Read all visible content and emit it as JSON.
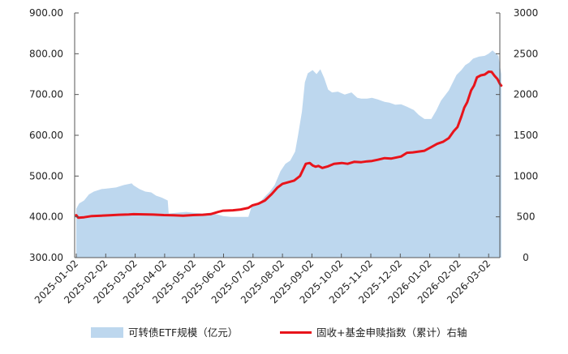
{
  "chart_data": {
    "type": "area",
    "title": "",
    "x_tick_labels": [
      "2025-01-02",
      "2025-02-02",
      "2025-03-02",
      "2025-04-02",
      "2025-05-02",
      "2025-06-02",
      "2025-07-02",
      "2025-08-02",
      "2025-09-02",
      "2025-10-02",
      "2025-11-02",
      "2025-12-02",
      "2026-01-02",
      "2026-02-02",
      "2026-03-02"
    ],
    "y_left": {
      "ticks": [
        "300.00",
        "400.00",
        "500.00",
        "600.00",
        "700.00",
        "800.00",
        "900.00"
      ],
      "range": [
        300,
        900
      ]
    },
    "y_right": {
      "ticks": [
        "0",
        "500",
        "1000",
        "1500",
        "2000",
        "2500",
        "3000"
      ],
      "range": [
        0,
        3000
      ]
    },
    "legend_position": "bottom",
    "grid": false,
    "colors": {
      "area": "#bdd7ee",
      "line": "#e8141b"
    },
    "series": [
      {
        "name": "可转债ETF规模（亿元）",
        "axis": "left",
        "style": "area",
        "points": [
          [
            "2025-01-02",
            420
          ],
          [
            "2025-01-05",
            433
          ],
          [
            "2025-01-10",
            440
          ],
          [
            "2025-01-15",
            455
          ],
          [
            "2025-01-20",
            462
          ],
          [
            "2025-01-28",
            468
          ],
          [
            "2025-02-05",
            470
          ],
          [
            "2025-02-12",
            472
          ],
          [
            "2025-02-20",
            478
          ],
          [
            "2025-02-28",
            482
          ],
          [
            "2025-03-02",
            477
          ],
          [
            "2025-03-08",
            468
          ],
          [
            "2025-03-14",
            462
          ],
          [
            "2025-03-20",
            460
          ],
          [
            "2025-03-25",
            452
          ],
          [
            "2025-03-31",
            447
          ],
          [
            "2025-04-06",
            440
          ],
          [
            "2025-04-07",
            408
          ],
          [
            "2025-04-15",
            410
          ],
          [
            "2025-04-25",
            412
          ],
          [
            "2025-05-02",
            410
          ],
          [
            "2025-05-12",
            408
          ],
          [
            "2025-05-20",
            410
          ],
          [
            "2025-05-28",
            405
          ],
          [
            "2025-06-02",
            402
          ],
          [
            "2025-06-10",
            400
          ],
          [
            "2025-06-20",
            400
          ],
          [
            "2025-06-28",
            400
          ],
          [
            "2025-07-02",
            430
          ],
          [
            "2025-07-10",
            436
          ],
          [
            "2025-07-15",
            450
          ],
          [
            "2025-07-20",
            462
          ],
          [
            "2025-07-25",
            478
          ],
          [
            "2025-07-31",
            512
          ],
          [
            "2025-08-05",
            530
          ],
          [
            "2025-08-10",
            538
          ],
          [
            "2025-08-15",
            560
          ],
          [
            "2025-08-18",
            600
          ],
          [
            "2025-08-22",
            658
          ],
          [
            "2025-08-25",
            730
          ],
          [
            "2025-08-28",
            752
          ],
          [
            "2025-09-02",
            760
          ],
          [
            "2025-09-06",
            750
          ],
          [
            "2025-09-10",
            762
          ],
          [
            "2025-09-14",
            740
          ],
          [
            "2025-09-18",
            712
          ],
          [
            "2025-09-22",
            705
          ],
          [
            "2025-09-28",
            707
          ],
          [
            "2025-10-05",
            700
          ],
          [
            "2025-10-12",
            705
          ],
          [
            "2025-10-18",
            692
          ],
          [
            "2025-10-22",
            690
          ],
          [
            "2025-10-28",
            690
          ],
          [
            "2025-11-02",
            692
          ],
          [
            "2025-11-08",
            688
          ],
          [
            "2025-11-15",
            682
          ],
          [
            "2025-11-20",
            680
          ],
          [
            "2025-11-26",
            675
          ],
          [
            "2025-12-02",
            676
          ],
          [
            "2025-12-08",
            670
          ],
          [
            "2025-12-15",
            662
          ],
          [
            "2025-12-20",
            650
          ],
          [
            "2025-12-26",
            640
          ],
          [
            "2026-01-02",
            640
          ],
          [
            "2026-01-07",
            660
          ],
          [
            "2026-01-12",
            685
          ],
          [
            "2026-01-20",
            710
          ],
          [
            "2026-01-28",
            748
          ],
          [
            "2026-02-02",
            760
          ],
          [
            "2026-02-06",
            772
          ],
          [
            "2026-02-10",
            778
          ],
          [
            "2026-02-14",
            788
          ],
          [
            "2026-02-20",
            793
          ],
          [
            "2026-02-26",
            795
          ],
          [
            "2026-03-02",
            800
          ],
          [
            "2026-03-06",
            808
          ],
          [
            "2026-03-12",
            795
          ],
          [
            "2026-03-15",
            750
          ]
        ]
      },
      {
        "name": "固收+基金申赎指数（累计）右轴",
        "axis": "right",
        "style": "line",
        "points": [
          [
            "2025-01-02",
            520
          ],
          [
            "2025-01-04",
            490
          ],
          [
            "2025-01-10",
            495
          ],
          [
            "2025-01-18",
            510
          ],
          [
            "2025-01-28",
            515
          ],
          [
            "2025-02-05",
            520
          ],
          [
            "2025-02-15",
            525
          ],
          [
            "2025-02-25",
            528
          ],
          [
            "2025-03-02",
            532
          ],
          [
            "2025-03-12",
            530
          ],
          [
            "2025-03-22",
            527
          ],
          [
            "2025-04-02",
            522
          ],
          [
            "2025-04-12",
            520
          ],
          [
            "2025-04-22",
            515
          ],
          [
            "2025-05-02",
            522
          ],
          [
            "2025-05-12",
            525
          ],
          [
            "2025-05-20",
            532
          ],
          [
            "2025-05-28",
            560
          ],
          [
            "2025-06-02",
            575
          ],
          [
            "2025-06-12",
            580
          ],
          [
            "2025-06-20",
            590
          ],
          [
            "2025-06-28",
            610
          ],
          [
            "2025-07-02",
            640
          ],
          [
            "2025-07-08",
            660
          ],
          [
            "2025-07-15",
            700
          ],
          [
            "2025-07-22",
            780
          ],
          [
            "2025-07-28",
            860
          ],
          [
            "2025-08-02",
            905
          ],
          [
            "2025-08-08",
            925
          ],
          [
            "2025-08-14",
            945
          ],
          [
            "2025-08-20",
            1000
          ],
          [
            "2025-08-26",
            1150
          ],
          [
            "2025-08-30",
            1160
          ],
          [
            "2025-09-02",
            1130
          ],
          [
            "2025-09-05",
            1115
          ],
          [
            "2025-09-08",
            1125
          ],
          [
            "2025-09-12",
            1100
          ],
          [
            "2025-09-18",
            1120
          ],
          [
            "2025-09-24",
            1150
          ],
          [
            "2025-10-02",
            1160
          ],
          [
            "2025-10-08",
            1150
          ],
          [
            "2025-10-15",
            1175
          ],
          [
            "2025-10-22",
            1170
          ],
          [
            "2025-10-28",
            1180
          ],
          [
            "2025-11-02",
            1185
          ],
          [
            "2025-11-08",
            1200
          ],
          [
            "2025-11-15",
            1220
          ],
          [
            "2025-11-22",
            1215
          ],
          [
            "2025-11-28",
            1230
          ],
          [
            "2025-12-02",
            1240
          ],
          [
            "2025-12-08",
            1285
          ],
          [
            "2025-12-14",
            1290
          ],
          [
            "2025-12-20",
            1300
          ],
          [
            "2025-12-26",
            1310
          ],
          [
            "2026-01-02",
            1355
          ],
          [
            "2026-01-08",
            1395
          ],
          [
            "2026-01-14",
            1420
          ],
          [
            "2026-01-20",
            1465
          ],
          [
            "2026-01-25",
            1550
          ],
          [
            "2026-01-29",
            1600
          ],
          [
            "2026-02-02",
            1730
          ],
          [
            "2026-02-05",
            1840
          ],
          [
            "2026-02-08",
            1905
          ],
          [
            "2026-02-12",
            2050
          ],
          [
            "2026-02-15",
            2110
          ],
          [
            "2026-02-18",
            2210
          ],
          [
            "2026-02-22",
            2235
          ],
          [
            "2026-02-26",
            2245
          ],
          [
            "2026-03-02",
            2280
          ],
          [
            "2026-03-05",
            2278
          ],
          [
            "2026-03-08",
            2230
          ],
          [
            "2026-03-11",
            2190
          ],
          [
            "2026-03-14",
            2120
          ],
          [
            "2026-03-15",
            2110
          ]
        ]
      }
    ]
  }
}
